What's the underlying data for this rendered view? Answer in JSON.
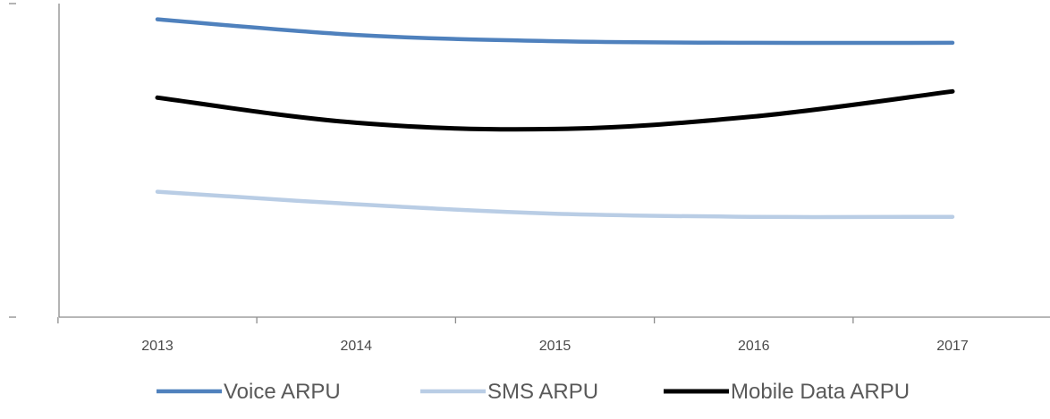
{
  "chart_data": {
    "type": "line",
    "title": "",
    "xlabel": "",
    "ylabel": "",
    "categories": [
      "2013",
      "2014",
      "2015",
      "2016",
      "2017"
    ],
    "ylim": [
      0,
      100
    ],
    "grid": false,
    "legend_position": "bottom",
    "series": [
      {
        "name": "Voice ARPU",
        "color": "#4f81bd",
        "values": [
          95,
          90,
          88,
          87.5,
          87.5
        ]
      },
      {
        "name": "SMS ARPU",
        "color": "#b9cde5",
        "values": [
          40,
          36,
          33,
          32,
          32
        ]
      },
      {
        "name": "Mobile Data ARPU",
        "color": "#000000",
        "values": [
          70,
          62,
          60,
          64,
          72
        ]
      }
    ]
  }
}
